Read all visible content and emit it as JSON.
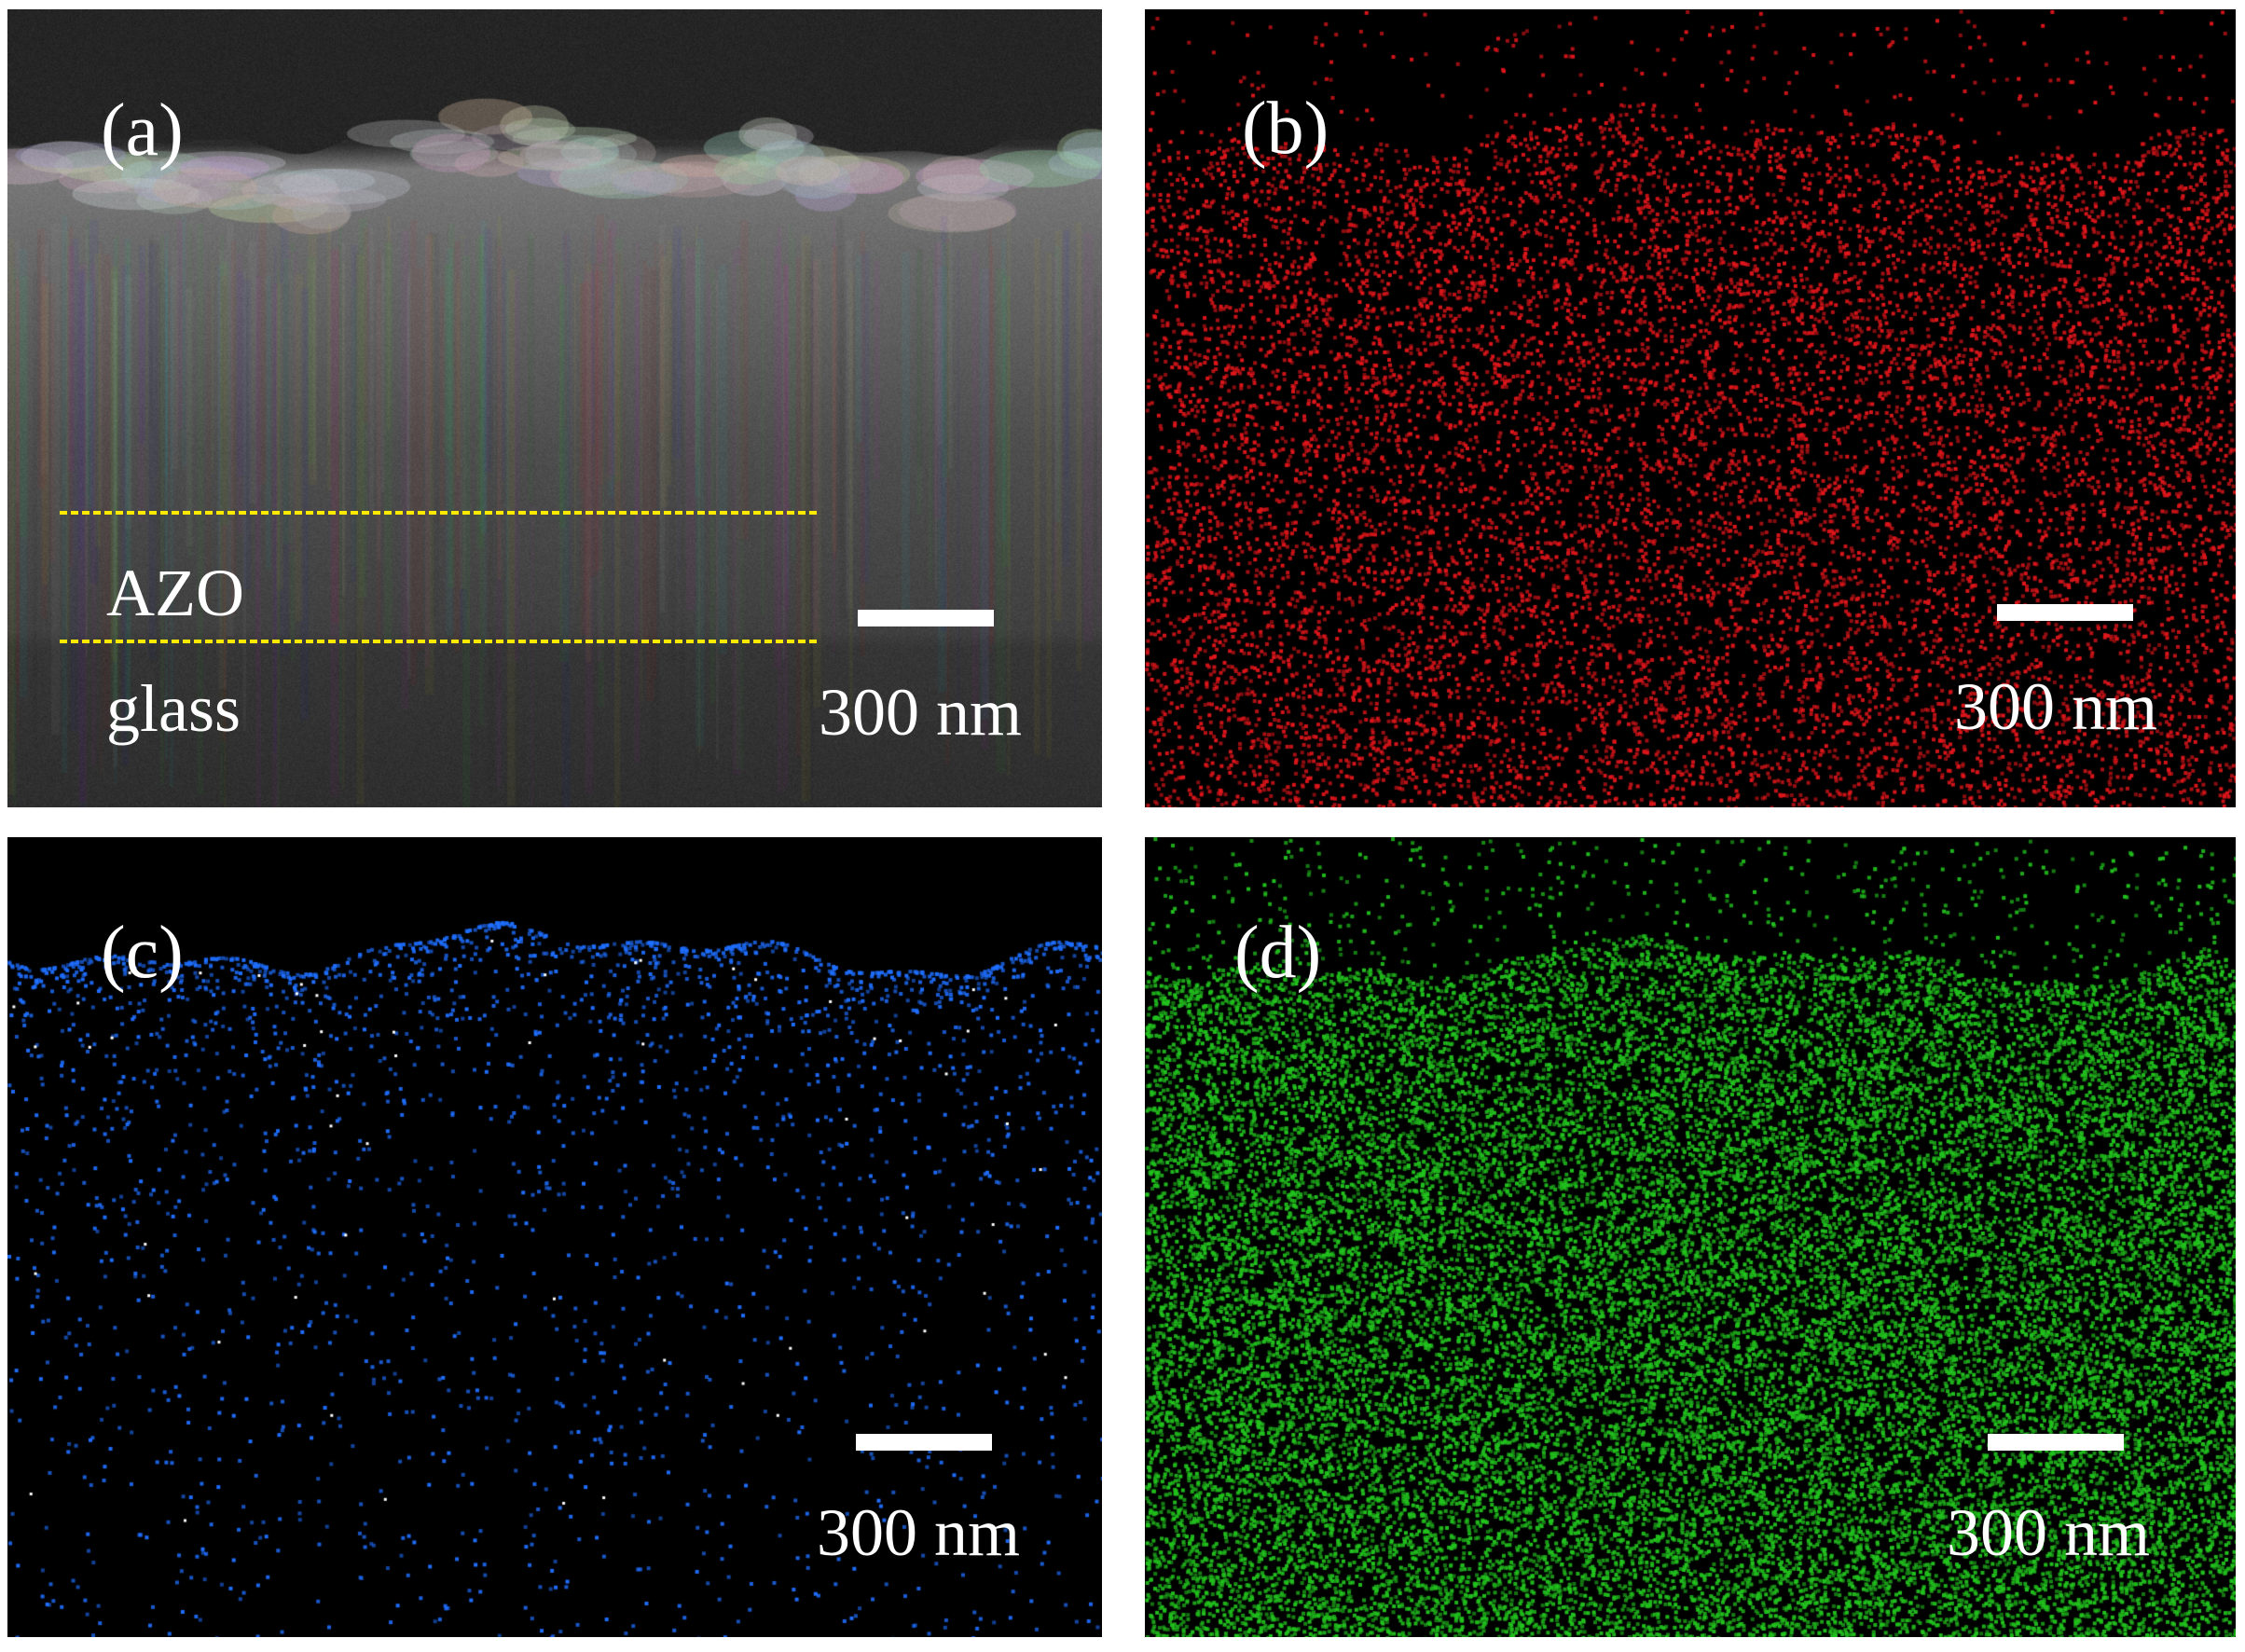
{
  "figure": {
    "panels": [
      {
        "id": "a",
        "label": "(a)",
        "scale_text": "300 nm",
        "type": "SEM cross-section",
        "annotations": {
          "upper_layer": "AZO",
          "substrate": "glass"
        },
        "guide_line_color": "#ffea00"
      },
      {
        "id": "b",
        "label": "(b)",
        "scale_text": "300 nm",
        "type": "EDS map",
        "dot_color": "#e0161b"
      },
      {
        "id": "c",
        "label": "(c)",
        "scale_text": "300 nm",
        "type": "EDS map",
        "dot_color": "#1f6fff"
      },
      {
        "id": "d",
        "label": "(d)",
        "scale_text": "300 nm",
        "type": "EDS map",
        "dot_color": "#22c21e"
      }
    ]
  }
}
